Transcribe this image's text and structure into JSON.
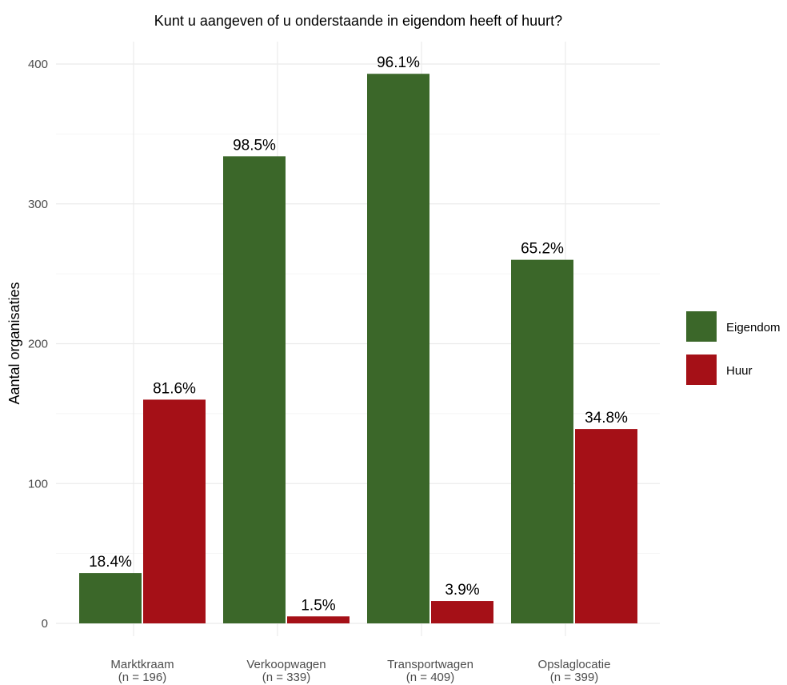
{
  "chart_data": {
    "type": "bar",
    "title": "Kunt u aangeven of u onderstaande in eigendom heeft of huurt?",
    "xlabel": "",
    "ylabel": "Aantal organisaties",
    "categories": [
      "Marktkraam",
      "Verkoopwagen",
      "Transportwagen",
      "Opslaglocatie"
    ],
    "category_counts": [
      "(n = 196)",
      "(n = 339)",
      "(n = 409)",
      "(n = 399)"
    ],
    "series": [
      {
        "name": "Eigendom",
        "color": "#3b6729",
        "values": [
          36,
          334,
          393,
          260
        ],
        "labels": [
          "18.4%",
          "98.5%",
          "96.1%",
          "65.2%"
        ]
      },
      {
        "name": "Huur",
        "color": "#a51017",
        "values": [
          160,
          5,
          16,
          139
        ],
        "labels": [
          "81.6%",
          "1.5%",
          "3.9%",
          "34.8%"
        ]
      }
    ],
    "yticks": [
      0,
      100,
      200,
      300,
      400
    ],
    "ylim": [
      0,
      400
    ],
    "grid": true,
    "legend_position": "right"
  }
}
